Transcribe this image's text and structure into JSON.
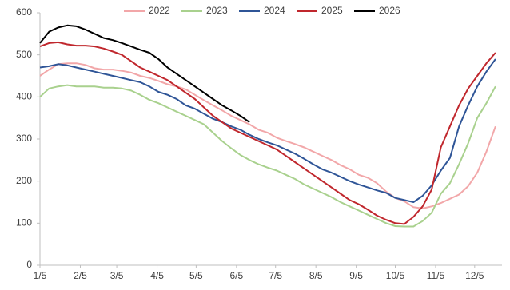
{
  "chart_data": {
    "type": "line",
    "x": [
      5,
      12,
      19,
      26,
      33,
      40,
      47,
      54,
      61,
      68,
      75,
      82,
      89,
      96,
      103,
      110,
      117,
      124,
      131,
      138,
      145,
      152,
      159,
      166,
      173,
      180,
      187,
      194,
      201,
      208,
      215,
      222,
      229,
      236,
      243,
      250,
      257,
      264,
      271,
      278,
      285,
      292,
      299,
      306,
      313,
      320,
      327,
      334,
      341,
      348,
      355
    ],
    "xlim": [
      5,
      360
    ],
    "xticks": [
      {
        "value": 5,
        "label": "1/5"
      },
      {
        "value": 36,
        "label": "2/5"
      },
      {
        "value": 64,
        "label": "3/5"
      },
      {
        "value": 95,
        "label": "4/5"
      },
      {
        "value": 125,
        "label": "5/5"
      },
      {
        "value": 156,
        "label": "6/5"
      },
      {
        "value": 186,
        "label": "7/5"
      },
      {
        "value": 217,
        "label": "8/5"
      },
      {
        "value": 248,
        "label": "9/5"
      },
      {
        "value": 278,
        "label": "10/5"
      },
      {
        "value": 309,
        "label": "11/5"
      },
      {
        "value": 339,
        "label": "12/5"
      }
    ],
    "ylim": [
      0,
      600
    ],
    "yticks": [
      0,
      100,
      200,
      300,
      400,
      500,
      600
    ],
    "grid": false,
    "legend": "top",
    "series": [
      {
        "name": "2022",
        "color": "#f2a7a9",
        "values": [
          450,
          465,
          478,
          480,
          480,
          476,
          468,
          465,
          465,
          462,
          458,
          450,
          445,
          438,
          430,
          425,
          418,
          405,
          392,
          380,
          368,
          355,
          345,
          335,
          322,
          315,
          303,
          295,
          288,
          280,
          270,
          260,
          250,
          238,
          228,
          215,
          208,
          195,
          175,
          160,
          152,
          138,
          135,
          140,
          148,
          158,
          168,
          188,
          220,
          270,
          330
        ]
      },
      {
        "name": "2023",
        "color": "#a9d18e",
        "values": [
          400,
          420,
          425,
          428,
          425,
          425,
          425,
          422,
          422,
          420,
          415,
          405,
          393,
          385,
          375,
          365,
          355,
          345,
          335,
          315,
          295,
          278,
          262,
          250,
          240,
          232,
          225,
          215,
          205,
          192,
          182,
          172,
          162,
          150,
          140,
          130,
          120,
          110,
          100,
          93,
          92,
          92,
          105,
          125,
          170,
          195,
          240,
          290,
          350,
          385,
          425
        ]
      },
      {
        "name": "2024",
        "color": "#2f5597",
        "values": [
          470,
          473,
          478,
          475,
          470,
          465,
          460,
          455,
          450,
          445,
          440,
          435,
          425,
          412,
          405,
          395,
          380,
          372,
          360,
          348,
          340,
          330,
          322,
          310,
          300,
          292,
          285,
          275,
          265,
          253,
          240,
          228,
          220,
          210,
          200,
          192,
          185,
          178,
          172,
          160,
          155,
          150,
          165,
          190,
          225,
          255,
          330,
          380,
          425,
          460,
          490
        ]
      },
      {
        "name": "2025",
        "color": "#c0272d",
        "values": [
          520,
          528,
          530,
          525,
          522,
          522,
          520,
          515,
          508,
          500,
          485,
          470,
          460,
          450,
          440,
          425,
          410,
          395,
          375,
          355,
          340,
          325,
          315,
          305,
          295,
          285,
          275,
          260,
          245,
          230,
          215,
          200,
          185,
          170,
          155,
          145,
          132,
          118,
          108,
          100,
          98,
          115,
          140,
          180,
          280,
          330,
          380,
          420,
          450,
          480,
          505
        ]
      },
      {
        "name": "2026",
        "color": "#000000",
        "values": [
          528,
          555,
          565,
          570,
          568,
          560,
          550,
          540,
          535,
          528,
          520,
          512,
          505,
          490,
          470,
          455,
          440,
          425,
          410,
          395,
          380,
          368,
          355,
          340,
          null,
          null,
          null,
          null,
          null,
          null,
          null,
          null,
          null,
          null,
          null,
          null,
          null,
          null,
          null,
          null,
          null,
          null,
          null,
          null,
          null,
          null,
          null,
          null,
          null,
          null,
          null
        ]
      }
    ]
  }
}
